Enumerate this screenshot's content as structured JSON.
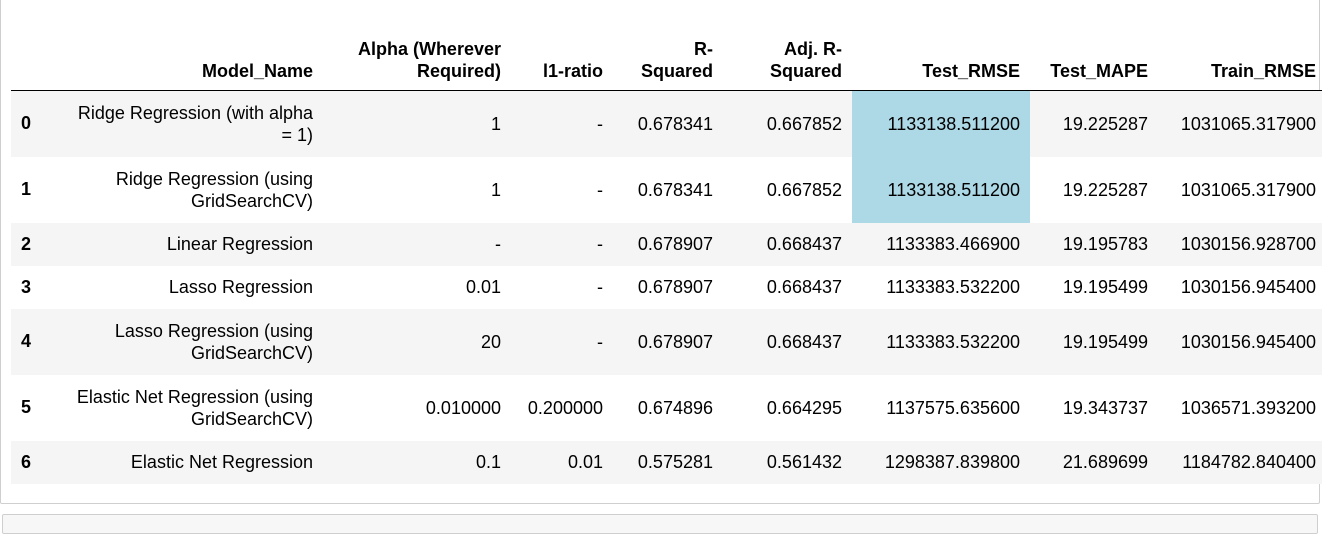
{
  "table": {
    "columns": [
      "",
      "Model_Name",
      "Alpha (Wherever Required)",
      "l1-ratio",
      "R-Squared",
      "Adj. R-Squared",
      "Test_RMSE",
      "Test_MAPE",
      "Train_RMSE"
    ],
    "rows": [
      {
        "index": "0",
        "Model_Name": "Ridge Regression (with alpha = 1)",
        "Alpha": "1",
        "l1_ratio": "-",
        "R_Squared": "0.678341",
        "Adj_R_Squared": "0.667852",
        "Test_RMSE": "1133138.511200",
        "Test_MAPE": "19.225287",
        "Train_RMSE": "1031065.317900"
      },
      {
        "index": "1",
        "Model_Name": "Ridge Regression (using GridSearchCV)",
        "Alpha": "1",
        "l1_ratio": "-",
        "R_Squared": "0.678341",
        "Adj_R_Squared": "0.667852",
        "Test_RMSE": "1133138.511200",
        "Test_MAPE": "19.225287",
        "Train_RMSE": "1031065.317900"
      },
      {
        "index": "2",
        "Model_Name": "Linear Regression",
        "Alpha": "-",
        "l1_ratio": "-",
        "R_Squared": "0.678907",
        "Adj_R_Squared": "0.668437",
        "Test_RMSE": "1133383.466900",
        "Test_MAPE": "19.195783",
        "Train_RMSE": "1030156.928700"
      },
      {
        "index": "3",
        "Model_Name": "Lasso Regression",
        "Alpha": "0.01",
        "l1_ratio": "-",
        "R_Squared": "0.678907",
        "Adj_R_Squared": "0.668437",
        "Test_RMSE": "1133383.532200",
        "Test_MAPE": "19.195499",
        "Train_RMSE": "1030156.945400"
      },
      {
        "index": "4",
        "Model_Name": "Lasso Regression (using GridSearchCV)",
        "Alpha": "20",
        "l1_ratio": "-",
        "R_Squared": "0.678907",
        "Adj_R_Squared": "0.668437",
        "Test_RMSE": "1133383.532200",
        "Test_MAPE": "19.195499",
        "Train_RMSE": "1030156.945400"
      },
      {
        "index": "5",
        "Model_Name": "Elastic Net Regression (using GridSearchCV)",
        "Alpha": "0.010000",
        "l1_ratio": "0.200000",
        "R_Squared": "0.674896",
        "Adj_R_Squared": "0.664295",
        "Test_RMSE": "1137575.635600",
        "Test_MAPE": "19.343737",
        "Train_RMSE": "1036571.393200"
      },
      {
        "index": "6",
        "Model_Name": "Elastic Net Regression",
        "Alpha": "0.1",
        "l1_ratio": "0.01",
        "R_Squared": "0.575281",
        "Adj_R_Squared": "0.561432",
        "Test_RMSE": "1298387.839800",
        "Test_MAPE": "21.689699",
        "Train_RMSE": "1184782.840400"
      }
    ],
    "highlight_color": "#add8e6",
    "highlighted_column": "Test_RMSE",
    "highlighted_rows": [
      "0",
      "1"
    ]
  }
}
